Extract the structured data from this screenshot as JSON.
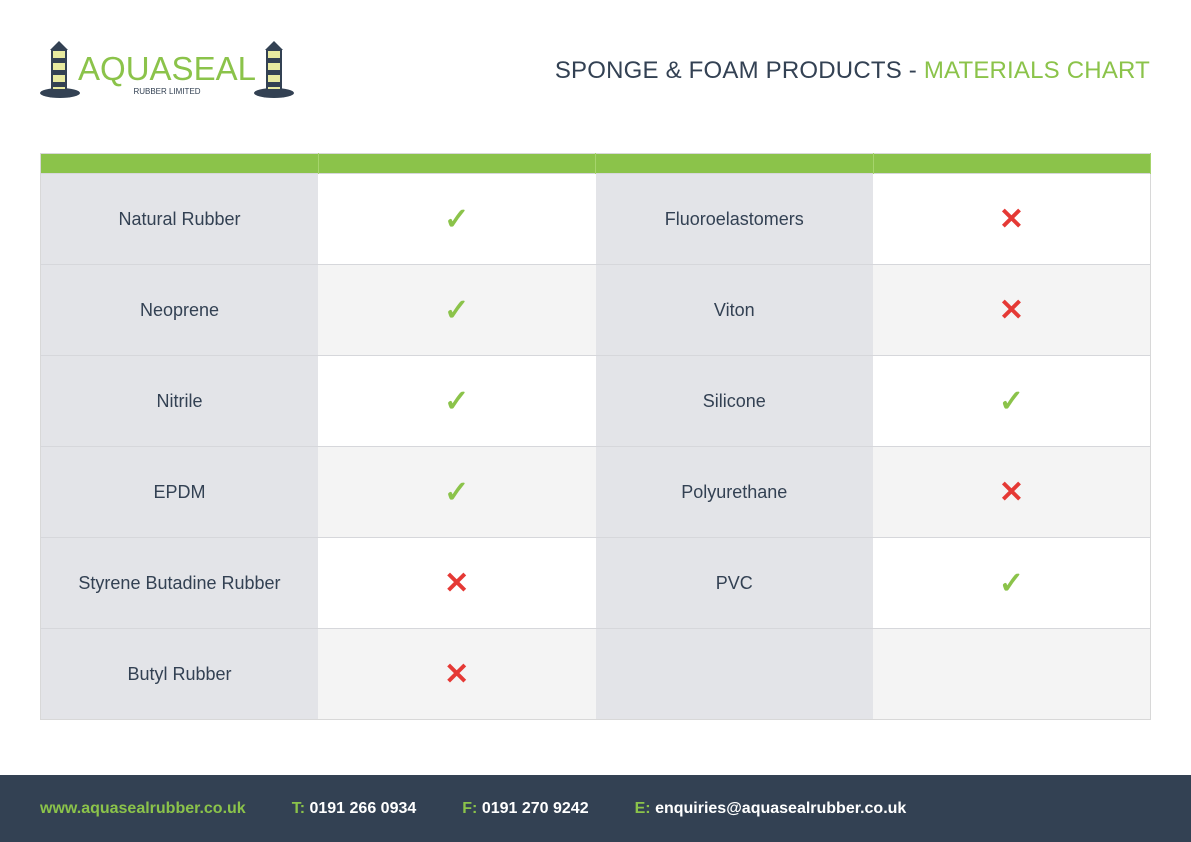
{
  "logo": {
    "brand": "AQUASEAL",
    "sub": "RUBBER LIMITED"
  },
  "title": {
    "main": "SPONGE & FOAM PRODUCTS - ",
    "accent": "MATERIALS CHART"
  },
  "colors": {
    "green": "#8bc34a",
    "red": "#e53935",
    "navy": "#334153"
  },
  "rows": [
    [
      {
        "name": "Natural Rubber",
        "ok": true
      },
      {
        "name": "Fluoroelastomers",
        "ok": false
      }
    ],
    [
      {
        "name": "Neoprene",
        "ok": true
      },
      {
        "name": "Viton",
        "ok": false
      }
    ],
    [
      {
        "name": "Nitrile",
        "ok": true
      },
      {
        "name": "Silicone",
        "ok": true
      }
    ],
    [
      {
        "name": "EPDM",
        "ok": true
      },
      {
        "name": "Polyurethane",
        "ok": false
      }
    ],
    [
      {
        "name": "Styrene Butadine Rubber",
        "ok": false
      },
      {
        "name": "PVC",
        "ok": true
      }
    ],
    [
      {
        "name": "Butyl Rubber",
        "ok": false
      },
      {
        "name": "",
        "ok": null
      }
    ]
  ],
  "icons": {
    "yes": "✓",
    "no": "✕"
  },
  "footer": {
    "web": "www.aquasealrubber.co.uk",
    "tel_label": "T:",
    "tel": "0191 266 0934",
    "fax_label": "F:",
    "fax": "0191 270 9242",
    "email_label": "E:",
    "email": "enquiries@aquasealrubber.co.uk"
  }
}
